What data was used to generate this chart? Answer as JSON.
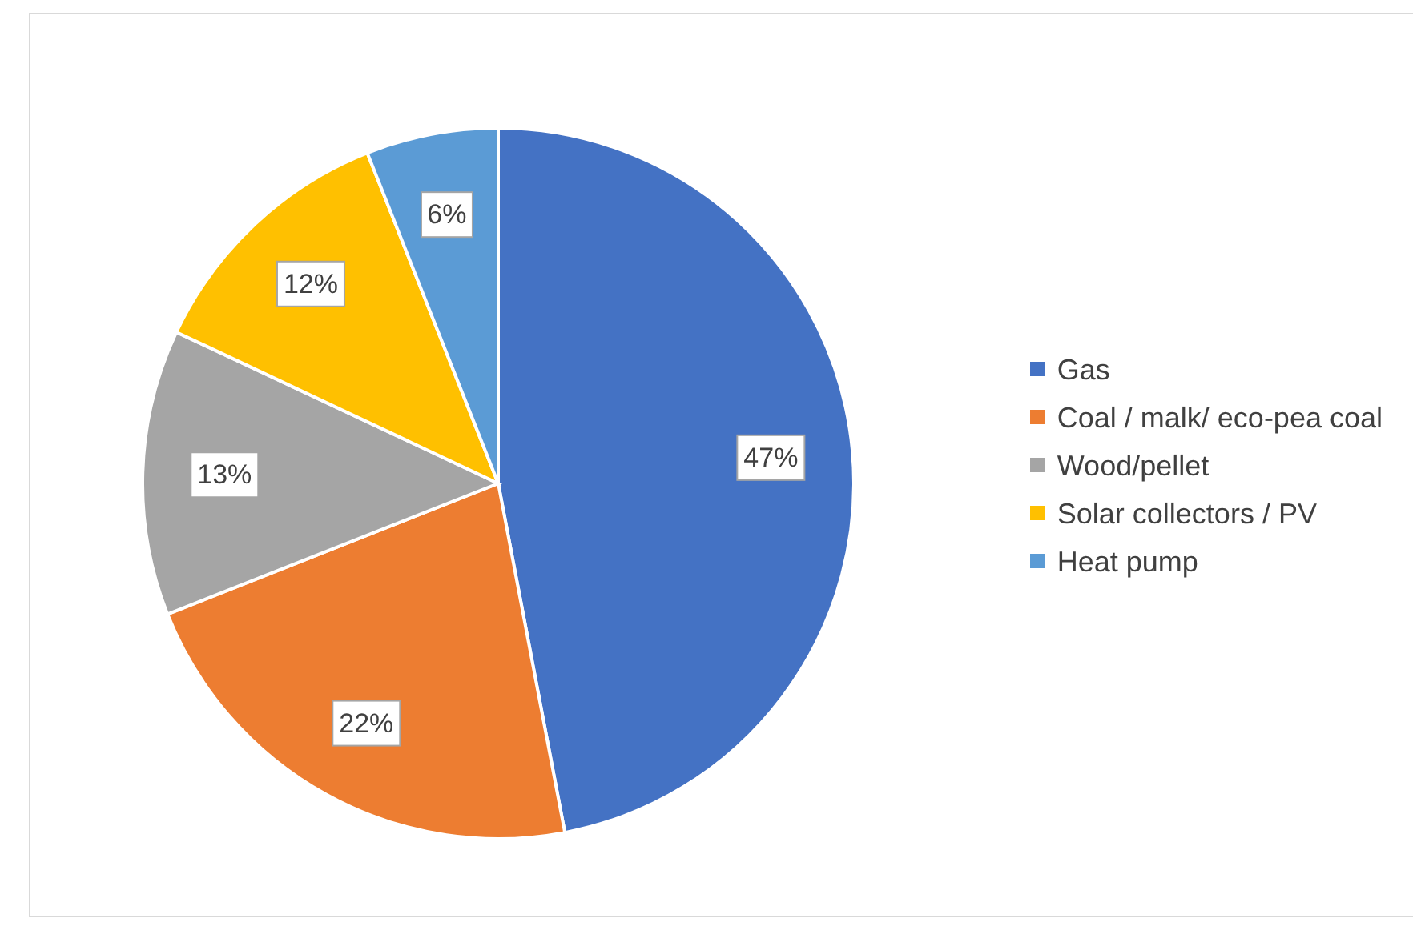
{
  "chart_data": {
    "type": "pie",
    "categories": [
      "Gas",
      "Coal / malk/ eco-pea coal",
      "Wood/pellet",
      "Solar collectors / PV",
      "Heat pump"
    ],
    "values": [
      47,
      22,
      13,
      12,
      6
    ],
    "colors": [
      "#4472c4",
      "#ed7d31",
      "#a5a5a5",
      "#ffc000",
      "#5b9bd5"
    ],
    "value_labels": [
      "47%",
      "22%",
      "13%",
      "12%",
      "6%"
    ],
    "legend": "right"
  }
}
